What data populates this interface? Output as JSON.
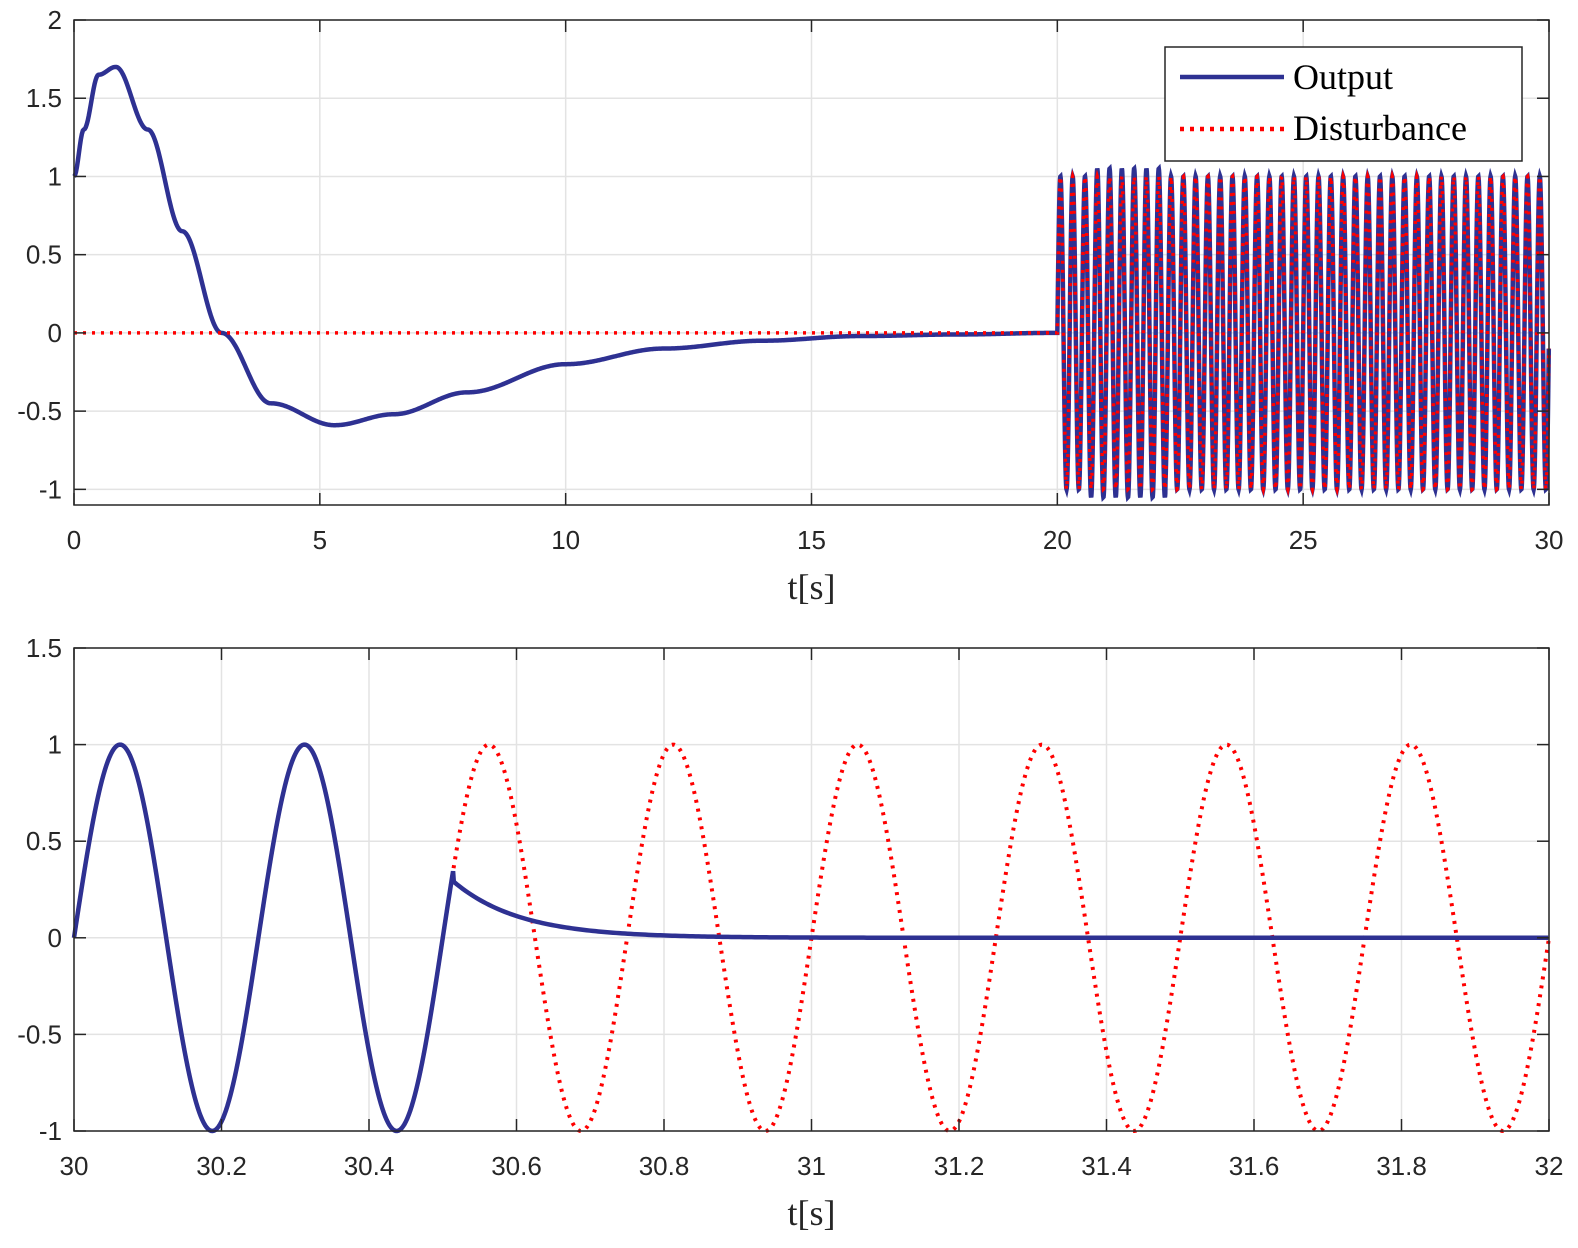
{
  "colors": {
    "output": "#2e3192",
    "disturbance": "#ff0000",
    "grid": "#e3e3e3",
    "axis": "#262626"
  },
  "legend": {
    "placement": "top-right",
    "output_label": "Output",
    "disturbance_label": "Disturbance"
  },
  "chart_data": [
    {
      "type": "line",
      "title": "",
      "xlabel": "t[s]",
      "ylabel": "",
      "xlim": [
        0,
        30
      ],
      "ylim": [
        -1.1,
        2
      ],
      "grid": true,
      "xticks": [
        0,
        5,
        10,
        15,
        20,
        25,
        30
      ],
      "xtick_labels": [
        "0",
        "5",
        "10",
        "15",
        "20",
        "25",
        "30"
      ],
      "yticks": [
        -1,
        -0.5,
        0,
        0.5,
        1,
        1.5,
        2
      ],
      "ytick_labels": [
        "-1",
        "-0.5",
        "0",
        "0.5",
        "1",
        "1.5",
        "2"
      ],
      "series": [
        {
          "name": "Output",
          "description_points": {
            "x": [
              0,
              0.2,
              0.5,
              0.85,
              1.5,
              2.2,
              3.0,
              4.0,
              5.3,
              6.5,
              8,
              10,
              12,
              14,
              16,
              18,
              19.9
            ],
            "y": [
              1.0,
              1.3,
              1.65,
              1.7,
              1.3,
              0.65,
              0.0,
              -0.45,
              -0.59,
              -0.52,
              -0.38,
              -0.2,
              -0.1,
              -0.05,
              -0.02,
              -0.01,
              0.0
            ]
          },
          "oscillation": {
            "start": 20,
            "end": 30,
            "frequency_hz": 4,
            "amplitude": 1.0,
            "min_overshoot": -1.1
          }
        },
        {
          "name": "Disturbance",
          "description_points": {
            "x": [
              0,
              20
            ],
            "y": [
              0,
              0
            ]
          },
          "oscillation": {
            "start": 20,
            "end": 30,
            "frequency_hz": 4,
            "amplitude": 1.0
          }
        }
      ]
    },
    {
      "type": "line",
      "title": "",
      "xlabel": "t[s]",
      "ylabel": "",
      "xlim": [
        30,
        32
      ],
      "ylim": [
        -1,
        1.5
      ],
      "grid": true,
      "xticks": [
        30,
        30.2,
        30.4,
        30.6,
        30.8,
        31,
        31.2,
        31.4,
        31.6,
        31.8,
        32
      ],
      "xtick_labels": [
        "30",
        "30.2",
        "30.4",
        "30.6",
        "30.8",
        "31",
        "31.2",
        "31.4",
        "31.6",
        "31.8",
        "32"
      ],
      "yticks": [
        -1,
        -0.5,
        0,
        0.5,
        1,
        1.5
      ],
      "ytick_labels": [
        "-1",
        "-0.5",
        "0",
        "0.5",
        "1",
        "1.5"
      ],
      "series": [
        {
          "name": "Output",
          "tracking": {
            "start": 30,
            "end": 30.515,
            "frequency_hz": 4,
            "amplitude": 1.0
          },
          "decay": {
            "start": 30.515,
            "start_value": 0.29,
            "time_constant_s": 0.09
          }
        },
        {
          "name": "Disturbance",
          "oscillation": {
            "start": 30,
            "end": 32,
            "frequency_hz": 4,
            "amplitude": 1.0
          }
        }
      ]
    }
  ]
}
